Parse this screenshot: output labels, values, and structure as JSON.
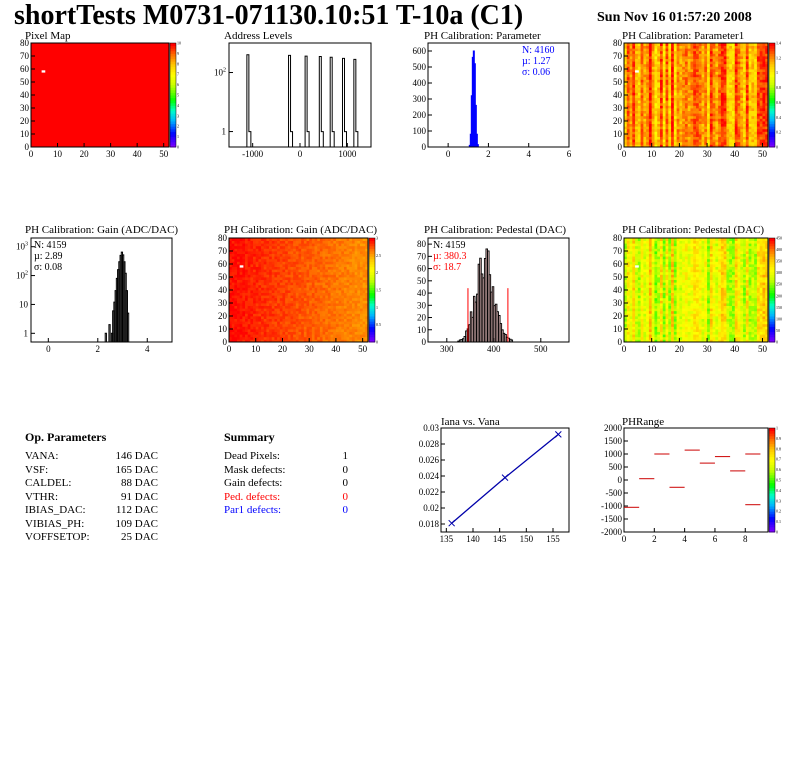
{
  "title": "shortTests M0731-071130.10:51 T-10a (C1)",
  "datetime": "Sun Nov 16 01:57:20 2008",
  "op_parameters": {
    "heading": "Op. Parameters",
    "rows": [
      {
        "label": "VANA:",
        "value": "146 DAC"
      },
      {
        "label": "VSF:",
        "value": "165 DAC"
      },
      {
        "label": "CALDEL:",
        "value": "88 DAC"
      },
      {
        "label": "VTHR:",
        "value": "91 DAC"
      },
      {
        "label": "IBIAS_DAC:",
        "value": "112 DAC"
      },
      {
        "label": "VIBIAS_PH:",
        "value": "109 DAC"
      },
      {
        "label": "VOFFSETOP:",
        "value": "25 DAC"
      }
    ]
  },
  "summary": {
    "heading": "Summary",
    "rows": [
      {
        "label": "Dead Pixels:",
        "value": "1",
        "color": "#000000"
      },
      {
        "label": "Mask defects:",
        "value": "0",
        "color": "#000000"
      },
      {
        "label": "Gain defects:",
        "value": "0",
        "color": "#000000"
      },
      {
        "label": "Ped. defects:",
        "value": "0",
        "color": "#ff0000"
      },
      {
        "label": "Par1 defects:",
        "value": "0",
        "color": "#0000ff"
      }
    ]
  },
  "chart_data": [
    {
      "id": "pixelmap",
      "type": "heatmap",
      "title": "Pixel Map",
      "xlim": [
        0,
        52
      ],
      "ylim": [
        0,
        80
      ],
      "xticks": [
        "0",
        "10",
        "20",
        "30",
        "40",
        "50"
      ],
      "yticks": [
        "0",
        "10",
        "20",
        "30",
        "40",
        "50",
        "60",
        "70",
        "80"
      ],
      "fill": "uniform",
      "level": 1.0,
      "colorbar_ticks": [
        "0",
        "1",
        "2",
        "3",
        "4",
        "5",
        "6",
        "7",
        "8",
        "9",
        "10"
      ],
      "dead_pixels": [
        {
          "col": 4,
          "row": 58
        }
      ]
    },
    {
      "id": "address",
      "type": "bar",
      "title": "Address Levels",
      "xlim": [
        -1500,
        1500
      ],
      "ylim_log": [
        0.3,
        1000
      ],
      "yscale": "log",
      "xticks": [
        "-1000",
        "0",
        "1000"
      ],
      "peaks": [
        {
          "x": -1080,
          "height": 400,
          "baseline": 1
        },
        {
          "x": -200,
          "height": 380,
          "baseline": 1
        },
        {
          "x": 150,
          "height": 360,
          "baseline": 1
        },
        {
          "x": 450,
          "height": 350,
          "baseline": 1
        },
        {
          "x": 680,
          "height": 330,
          "baseline": 1
        },
        {
          "x": 940,
          "height": 300,
          "baseline": 1
        },
        {
          "x": 1180,
          "height": 280,
          "baseline": 1
        }
      ]
    },
    {
      "id": "phpar",
      "type": "bar",
      "title": "PH Calibration: Parameter",
      "xlim": [
        -1,
        6
      ],
      "ylim": [
        0,
        650
      ],
      "xticks": [
        "0",
        "2",
        "4",
        "6"
      ],
      "yticks": [
        "0",
        "100",
        "200",
        "300",
        "400",
        "500",
        "600"
      ],
      "bins": [
        [
          1.05,
          10
        ],
        [
          1.1,
          80
        ],
        [
          1.15,
          320
        ],
        [
          1.2,
          560
        ],
        [
          1.25,
          600
        ],
        [
          1.3,
          520
        ],
        [
          1.35,
          260
        ],
        [
          1.4,
          80
        ],
        [
          1.45,
          15
        ]
      ],
      "binwidth": 0.05,
      "color": "#0000ff",
      "stats": [
        {
          "text": "N: 4160",
          "color": "#0000ff"
        },
        {
          "text": "µ: 1.27",
          "color": "#0000ff"
        },
        {
          "text": "σ: 0.06",
          "color": "#0000ff"
        }
      ]
    },
    {
      "id": "phpar1",
      "type": "heatmap",
      "title": "PH Calibration: Parameter1",
      "xlim": [
        0,
        52
      ],
      "ylim": [
        0,
        80
      ],
      "xticks": [
        "0",
        "10",
        "20",
        "30",
        "40",
        "50"
      ],
      "yticks": [
        "0",
        "10",
        "20",
        "30",
        "40",
        "50",
        "60",
        "70",
        "80"
      ],
      "fill": "column-random",
      "level_range": [
        0.75,
        0.98
      ],
      "colorbar_ticks": [
        "0",
        "0.2",
        "0.4",
        "0.6",
        "0.8",
        "1",
        "1.2",
        "1.4"
      ],
      "dead_pixels": [
        {
          "col": 4,
          "row": 58
        }
      ]
    },
    {
      "id": "gain",
      "type": "bar",
      "title": "PH Calibration: Gain (ADC/DAC)",
      "xlim": [
        -0.7,
        5
      ],
      "ylim_log": [
        0.5,
        2000
      ],
      "yscale": "log",
      "xticks": [
        "0",
        "2",
        "4"
      ],
      "bins": [
        [
          2.3,
          1
        ],
        [
          2.45,
          2
        ],
        [
          2.55,
          1
        ],
        [
          2.6,
          6
        ],
        [
          2.65,
          12
        ],
        [
          2.7,
          30
        ],
        [
          2.75,
          80
        ],
        [
          2.8,
          160
        ],
        [
          2.85,
          300
        ],
        [
          2.9,
          500
        ],
        [
          2.95,
          650
        ],
        [
          3.0,
          520
        ],
        [
          3.05,
          300
        ],
        [
          3.1,
          120
        ],
        [
          3.15,
          30
        ],
        [
          3.2,
          5
        ]
      ],
      "binwidth": 0.05,
      "color": "#000000",
      "stats": [
        {
          "text": "N: 4159",
          "color": "#000000"
        },
        {
          "text": "µ: 2.89",
          "color": "#000000"
        },
        {
          "text": "σ: 0.08",
          "color": "#000000"
        }
      ]
    },
    {
      "id": "gainmap",
      "type": "heatmap",
      "title": "PH Calibration: Gain (ADC/DAC)",
      "xlim": [
        0,
        52
      ],
      "ylim": [
        0,
        80
      ],
      "xticks": [
        "0",
        "10",
        "20",
        "30",
        "40",
        "50"
      ],
      "yticks": [
        "0",
        "10",
        "20",
        "30",
        "40",
        "50",
        "60",
        "70",
        "80"
      ],
      "fill": "gradient",
      "level_range": [
        0.86,
        0.99
      ],
      "colorbar_ticks": [
        "0",
        "0.5",
        "1",
        "1.5",
        "2",
        "2.5",
        "3"
      ],
      "dead_pixels": [
        {
          "col": 4,
          "row": 58
        }
      ]
    },
    {
      "id": "ped",
      "type": "bar",
      "title": "PH Calibration: Pedestal (DAC)",
      "xlim": [
        260,
        560
      ],
      "ylim": [
        0,
        85
      ],
      "xticks": [
        "300",
        "400",
        "500"
      ],
      "yticks": [
        "0",
        "10",
        "20",
        "30",
        "40",
        "50",
        "60",
        "70",
        "80"
      ],
      "mean": 380.3,
      "sigma": 18.7,
      "peak": 65,
      "cut_lines": [
        {
          "x": 345,
          "top": 44
        },
        {
          "x": 430,
          "top": 44
        }
      ],
      "stats": [
        {
          "text": "N: 4159",
          "color": "#000000"
        },
        {
          "text": "µ: 380.3",
          "color": "#ff0000"
        },
        {
          "text": "σ: 18.7",
          "color": "#ff0000"
        }
      ]
    },
    {
      "id": "pedmap",
      "type": "heatmap",
      "title": "PH Calibration: Pedestal (DAC)",
      "xlim": [
        0,
        52
      ],
      "ylim": [
        0,
        80
      ],
      "xticks": [
        "0",
        "10",
        "20",
        "30",
        "40",
        "50"
      ],
      "yticks": [
        "0",
        "10",
        "20",
        "30",
        "40",
        "50",
        "60",
        "70",
        "80"
      ],
      "fill": "column-random",
      "level_range": [
        0.55,
        0.8
      ],
      "colorbar_ticks": [
        "0",
        "50",
        "100",
        "150",
        "200",
        "250",
        "300",
        "350",
        "400",
        "450"
      ],
      "dead_pixels": [
        {
          "col": 4,
          "row": 58
        }
      ]
    },
    {
      "id": "iana",
      "type": "line",
      "title": "Iana vs. Vana",
      "xlim": [
        134,
        158
      ],
      "ylim": [
        0.017,
        0.03
      ],
      "xticks": [
        "135",
        "140",
        "145",
        "150",
        "155"
      ],
      "yticks": [
        "0.018",
        "0.02",
        "0.022",
        "0.024",
        "0.026",
        "0.028",
        "0.03"
      ],
      "x": [
        136,
        146,
        156
      ],
      "y": [
        0.0181,
        0.0238,
        0.0292
      ]
    },
    {
      "id": "phrange",
      "type": "scatter",
      "title": "PHRange",
      "xlim": [
        0,
        9.5
      ],
      "ylim": [
        -2000,
        2000
      ],
      "xticks": [
        "0",
        "2",
        "4",
        "6",
        "8"
      ],
      "yticks": [
        "-2000",
        "-1500",
        "-1000",
        "-500",
        "0",
        "500",
        "1000",
        "1500",
        "2000"
      ],
      "segments": [
        {
          "x": 0,
          "y": -1050
        },
        {
          "x": 1,
          "y": 50
        },
        {
          "x": 2,
          "y": 1000
        },
        {
          "x": 3,
          "y": -280
        },
        {
          "x": 4,
          "y": 1150
        },
        {
          "x": 5,
          "y": 650
        },
        {
          "x": 6,
          "y": 900
        },
        {
          "x": 7,
          "y": 350
        },
        {
          "x": 8,
          "y": 1000
        },
        {
          "x": 8,
          "y": -950
        }
      ],
      "colorbar_ticks": [
        "0",
        "0.1",
        "0.2",
        "0.3",
        "0.4",
        "0.5",
        "0.6",
        "0.7",
        "0.8",
        "0.9",
        "1"
      ]
    }
  ]
}
